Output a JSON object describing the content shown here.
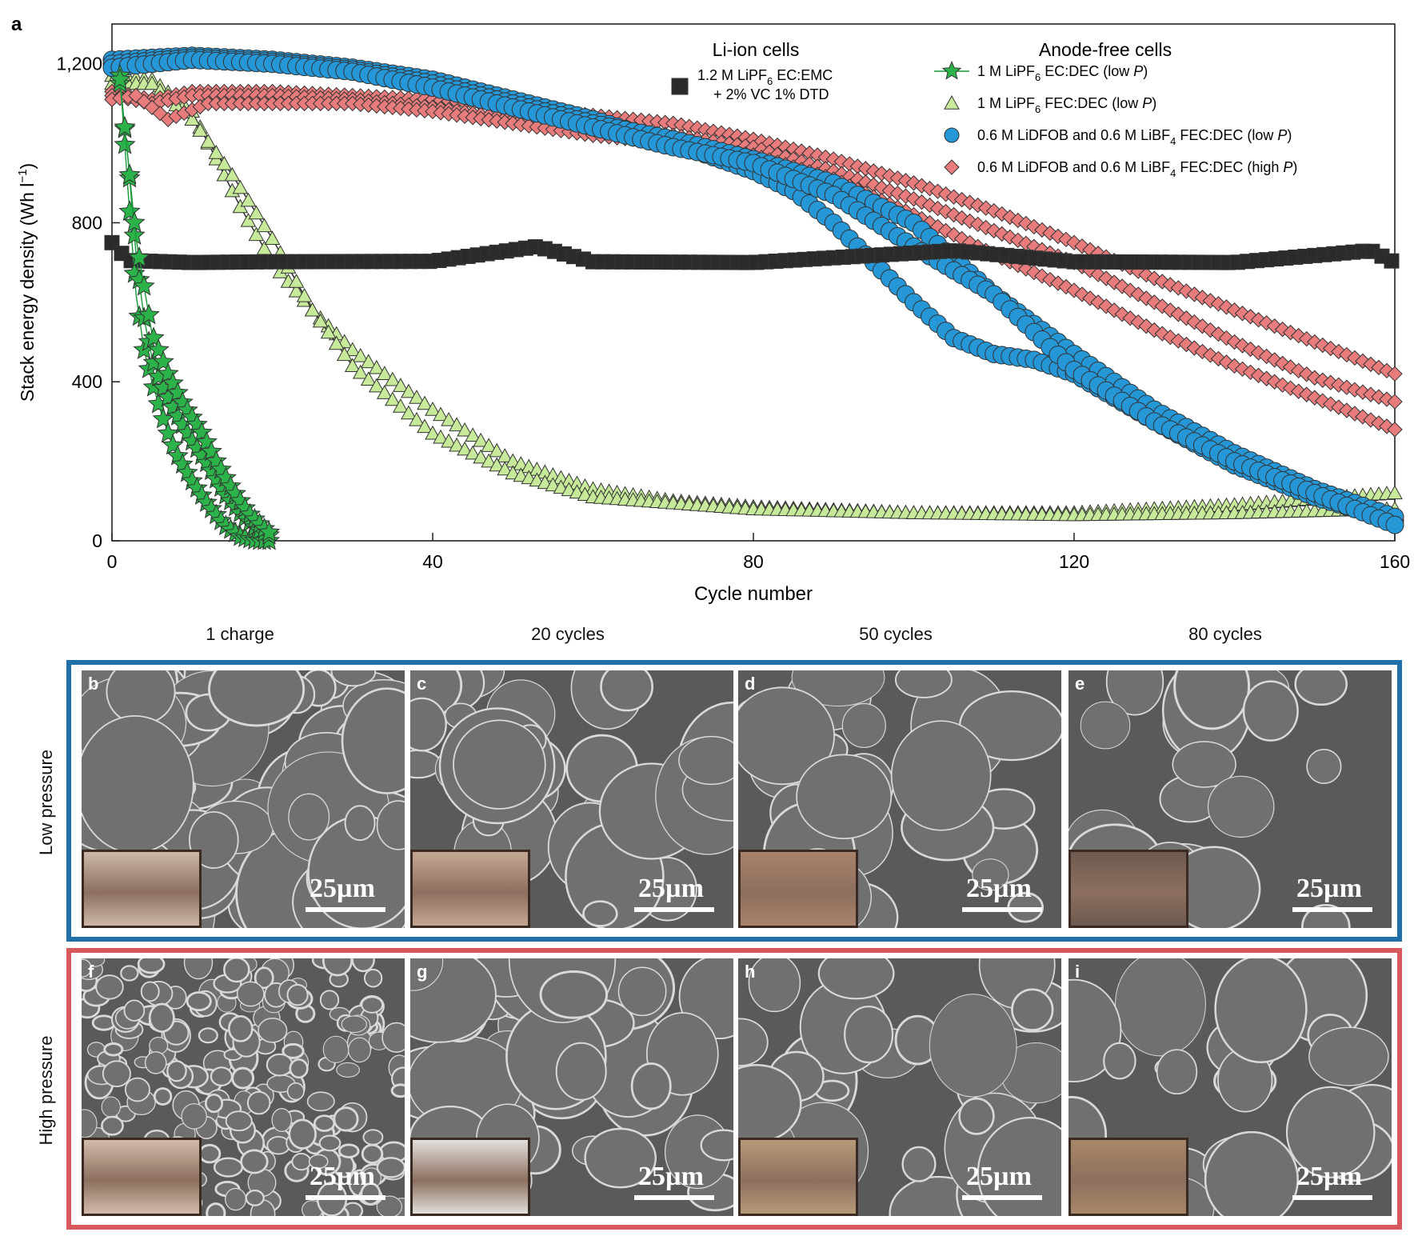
{
  "panel_a_label": "a",
  "chart_data": {
    "type": "scatter",
    "xlabel": "Cycle number",
    "ylabel": "Stack energy density (Wh l",
    "ylabel_sup": "−1",
    "ylabel_end": ")",
    "xlim": [
      0,
      160
    ],
    "ylim": [
      0,
      1300
    ],
    "xticks": [
      0,
      40,
      80,
      120,
      160
    ],
    "yticks": [
      0,
      400,
      800,
      1200
    ],
    "ytick_labels": [
      "0",
      "400",
      "800",
      "1,200"
    ],
    "legend_groups": {
      "li_ion": "Li-ion cells",
      "anode_free": "Anode-free cells"
    },
    "legend_placement": "top-right",
    "series": [
      {
        "name_parts": [
          "1.2 M LiPF",
          "6",
          " EC:EMC",
          "+ 2% VC 1% DTD"
        ],
        "group": "li_ion",
        "marker": "square",
        "color": "#2b2b2b",
        "curves": [
          {
            "x": [
              0,
              2,
              10,
              20,
              40,
              53,
              60,
              80,
              105,
              120,
              140,
              157,
              160
            ],
            "y": [
              750,
              705,
              700,
              702,
              703,
              740,
              702,
              700,
              730,
              702,
              700,
              730,
              700
            ]
          }
        ]
      },
      {
        "name_parts": [
          "1 M LiPF",
          "6",
          " EC:DEC (low ",
          "P",
          ")"
        ],
        "group": "anode_free",
        "marker": "star",
        "color": "#2bb34a",
        "curves": [
          {
            "x": [
              1,
              2,
              3,
              4,
              5,
              6,
              7,
              8,
              10,
              12,
              14,
              16,
              18,
              20
            ],
            "y": [
              1170,
              880,
              620,
              480,
              400,
              330,
              270,
              220,
              150,
              90,
              40,
              10,
              0,
              0
            ]
          },
          {
            "x": [
              1,
              2,
              3,
              4,
              5,
              6,
              8,
              10,
              12,
              14,
              16,
              18,
              20
            ],
            "y": [
              1150,
              960,
              720,
              560,
              460,
              400,
              320,
              250,
              190,
              120,
              70,
              30,
              10
            ]
          },
          {
            "x": [
              1,
              3,
              5,
              7,
              9,
              11,
              13,
              15,
              17,
              19,
              20
            ],
            "y": [
              1160,
              760,
              520,
              420,
              340,
              280,
              200,
              130,
              70,
              30,
              15
            ]
          }
        ]
      },
      {
        "name_parts": [
          "1 M LiPF",
          "6",
          " FEC:DEC (low ",
          "P",
          ")"
        ],
        "group": "anode_free",
        "marker": "triangle",
        "color": "#c7ea9a",
        "curves": [
          {
            "x": [
              0,
              5,
              10,
              13,
              16,
              20,
              25,
              30,
              40,
              50,
              60,
              70,
              80,
              100,
              120,
              140,
              160
            ],
            "y": [
              1170,
              1160,
              1080,
              960,
              840,
              700,
              580,
              480,
              330,
              200,
              130,
              100,
              85,
              70,
              70,
              90,
              120
            ]
          },
          {
            "x": [
              0,
              5,
              10,
              15,
              20,
              25,
              30,
              40,
              50,
              60,
              80,
              100,
              120,
              140,
              160
            ],
            "y": [
              1150,
              1150,
              1060,
              920,
              760,
              580,
              440,
              270,
              170,
              110,
              80,
              70,
              65,
              70,
              80
            ]
          }
        ]
      },
      {
        "name_parts": [
          "0.6 M LiDFOB and 0.6 M LiBF",
          "4",
          " FEC:DEC (low ",
          "P",
          ")"
        ],
        "group": "anode_free",
        "marker": "circle",
        "color": "#2596d6",
        "curves": [
          {
            "x": [
              0,
              10,
              20,
              30,
              40,
              50,
              60,
              70,
              80,
              85,
              90,
              95,
              100,
              105,
              110,
              115,
              120,
              130,
              140,
              150,
              160
            ],
            "y": [
              1210,
              1220,
              1210,
              1190,
              1160,
              1110,
              1060,
              1000,
              930,
              880,
              800,
              700,
              600,
              510,
              470,
              455,
              420,
              300,
              190,
              110,
              50
            ]
          },
          {
            "x": [
              0,
              10,
              20,
              30,
              40,
              50,
              60,
              70,
              80,
              90,
              100,
              105,
              110,
              120,
              130,
              140,
              150,
              160
            ],
            "y": [
              1200,
              1215,
              1205,
              1185,
              1150,
              1100,
              1050,
              1010,
              960,
              900,
              800,
              710,
              620,
              470,
              330,
              220,
              130,
              60
            ]
          },
          {
            "x": [
              0,
              10,
              20,
              30,
              40,
              50,
              60,
              70,
              80,
              90,
              100,
              110,
              120,
              130,
              140,
              150,
              160
            ],
            "y": [
              1190,
              1210,
              1200,
              1180,
              1140,
              1090,
              1040,
              990,
              950,
              870,
              740,
              620,
              430,
              300,
              200,
              120,
              40
            ]
          }
        ]
      },
      {
        "name_parts": [
          "0.6 M LiDFOB and 0.6 M LiBF",
          "4",
          " FEC:DEC (high ",
          "P",
          ")"
        ],
        "group": "anode_free",
        "marker": "diamond",
        "color": "#e87c7c",
        "curves": [
          {
            "x": [
              0,
              5,
              10,
              20,
              30,
              40,
              50,
              60,
              70,
              80,
              90,
              100,
              110,
              120,
              130,
              140,
              150,
              160
            ],
            "y": [
              1130,
              1110,
              1130,
              1130,
              1120,
              1110,
              1090,
              1070,
              1050,
              1010,
              960,
              900,
              830,
              750,
              660,
              580,
              500,
              420
            ]
          },
          {
            "x": [
              0,
              5,
              10,
              20,
              30,
              40,
              50,
              60,
              70,
              80,
              90,
              100,
              110,
              120,
              130,
              140,
              150,
              160
            ],
            "y": [
              1120,
              1100,
              1120,
              1120,
              1110,
              1090,
              1060,
              1040,
              1020,
              990,
              930,
              860,
              780,
              700,
              600,
              500,
              410,
              350
            ]
          },
          {
            "x": [
              0,
              3,
              7,
              12,
              20,
              30,
              40,
              50,
              60,
              70,
              80,
              90,
              100,
              110,
              120,
              130,
              140,
              150,
              160
            ],
            "y": [
              1110,
              1120,
              1060,
              1100,
              1100,
              1100,
              1080,
              1050,
              1020,
              1000,
              970,
              910,
              820,
              720,
              630,
              530,
              440,
              360,
              280
            ]
          }
        ]
      }
    ]
  },
  "sem": {
    "columns": [
      "1 charge",
      "20 cycles",
      "50 cycles",
      "80 cycles"
    ],
    "rows": [
      "Low pressure",
      "High pressure"
    ],
    "scale_text": "25µm",
    "low_letters": [
      "b",
      "c",
      "d",
      "e"
    ],
    "high_letters": [
      "f",
      "g",
      "h",
      "i"
    ]
  },
  "colors": {
    "low_frame": "#1f6fa8",
    "high_frame": "#d6585a"
  }
}
